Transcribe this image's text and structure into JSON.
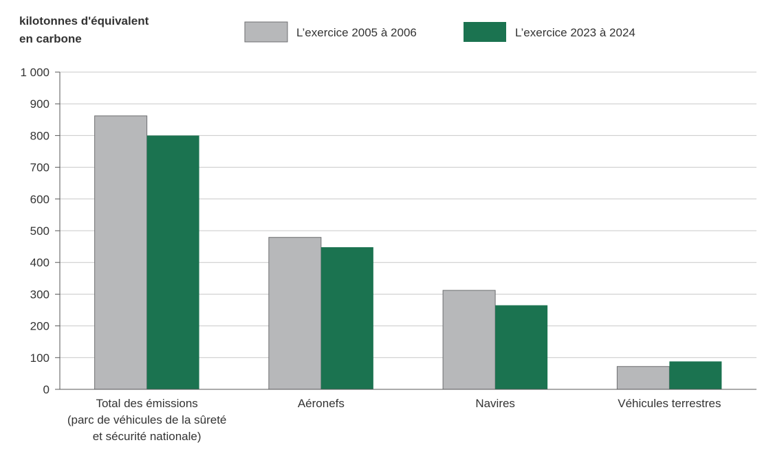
{
  "chart_data": {
    "type": "bar",
    "ylabel": [
      "kilotonnes d'équivalent",
      "en carbone"
    ],
    "categories": [
      [
        "Total des émissions",
        "(parc de véhicules de la sûreté",
        "et sécurité nationale)"
      ],
      [
        "Aéronefs"
      ],
      [
        "Navires"
      ],
      [
        "Véhicules terrestres"
      ]
    ],
    "series": [
      {
        "name": "L’exercice 2005 à 2006",
        "color": "#b7b8ba",
        "values": [
          862,
          479,
          312,
          72
        ]
      },
      {
        "name": "L’exercice 2023 à 2024",
        "color": "#1b7350",
        "values": [
          800,
          448,
          265,
          88
        ]
      }
    ],
    "ylim": [
      0,
      1000
    ],
    "yticks": [
      0,
      100,
      200,
      300,
      400,
      500,
      600,
      700,
      800,
      900,
      1000
    ],
    "ytick_labels": [
      "0",
      "100",
      "200",
      "300",
      "400",
      "500",
      "600",
      "700",
      "800",
      "900",
      "1 000"
    ],
    "grid": true,
    "legend": "top"
  }
}
